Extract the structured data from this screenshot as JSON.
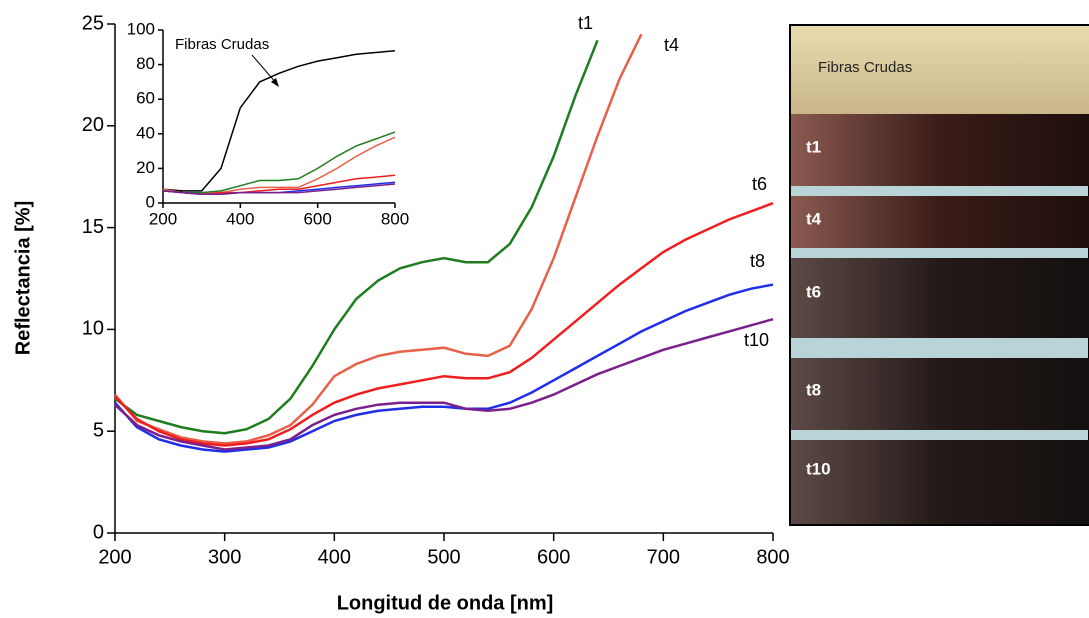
{
  "chart_data": [
    {
      "type": "line",
      "x_label": "Longitud de onda [nm]",
      "y_label": "Reflectancia [%]",
      "x": [
        200,
        220,
        240,
        260,
        280,
        300,
        320,
        340,
        360,
        380,
        400,
        420,
        440,
        460,
        480,
        500,
        520,
        540,
        560,
        580,
        600,
        620,
        640,
        660,
        680,
        700,
        720,
        740,
        760,
        780,
        800
      ],
      "xlim": [
        200,
        800
      ],
      "xticks": [
        200,
        300,
        400,
        500,
        600,
        700,
        800
      ],
      "ylim": [
        0,
        25
      ],
      "yticks": [
        0,
        5,
        10,
        15,
        20,
        25
      ],
      "series": [
        {
          "name": "t1",
          "color": "#1e7d1e",
          "values": [
            6.6,
            5.8,
            5.5,
            5.2,
            5.0,
            4.9,
            5.1,
            5.6,
            6.6,
            8.2,
            10.0,
            11.5,
            12.4,
            13.0,
            13.3,
            13.5,
            13.3,
            13.3,
            14.2,
            16.0,
            18.5,
            21.5,
            24.2,
            null,
            null,
            null,
            null,
            null,
            null,
            null,
            null
          ]
        },
        {
          "name": "t4",
          "color": "#e8604a",
          "values": [
            6.8,
            5.5,
            5.1,
            4.7,
            4.5,
            4.4,
            4.5,
            4.8,
            5.3,
            6.3,
            7.7,
            8.3,
            8.7,
            8.9,
            9.0,
            9.1,
            8.8,
            8.7,
            9.2,
            11.0,
            13.5,
            16.5,
            19.5,
            22.3,
            24.5,
            null,
            null,
            null,
            null,
            null,
            null
          ]
        },
        {
          "name": "t6",
          "color": "#f01e1e",
          "values": [
            6.7,
            5.6,
            5.0,
            4.6,
            4.4,
            4.3,
            4.4,
            4.6,
            5.1,
            5.8,
            6.4,
            6.8,
            7.1,
            7.3,
            7.5,
            7.7,
            7.6,
            7.6,
            7.9,
            8.6,
            9.5,
            10.4,
            11.3,
            12.2,
            13.0,
            13.8,
            14.4,
            14.9,
            15.4,
            15.8,
            16.2
          ]
        },
        {
          "name": "t8",
          "color": "#1f2fe8",
          "values": [
            6.4,
            5.2,
            4.6,
            4.3,
            4.1,
            4.0,
            4.1,
            4.2,
            4.5,
            5.0,
            5.5,
            5.8,
            6.0,
            6.1,
            6.2,
            6.2,
            6.1,
            6.1,
            6.4,
            6.9,
            7.5,
            8.1,
            8.7,
            9.3,
            9.9,
            10.4,
            10.9,
            11.3,
            11.7,
            12.0,
            12.2
          ]
        },
        {
          "name": "t10",
          "color": "#7b1f8c",
          "values": [
            6.3,
            5.3,
            4.8,
            4.5,
            4.3,
            4.1,
            4.2,
            4.3,
            4.6,
            5.3,
            5.8,
            6.1,
            6.3,
            6.4,
            6.4,
            6.4,
            6.1,
            6.0,
            6.1,
            6.4,
            6.8,
            7.3,
            7.8,
            8.2,
            8.6,
            9.0,
            9.3,
            9.6,
            9.9,
            10.2,
            10.5
          ]
        }
      ]
    },
    {
      "type": "line",
      "annotation": "Fibras Crudas",
      "x": [
        200,
        250,
        300,
        350,
        400,
        450,
        500,
        550,
        600,
        650,
        700,
        750,
        800
      ],
      "xlim": [
        200,
        800
      ],
      "xticks": [
        200,
        400,
        600,
        800
      ],
      "ylim": [
        0,
        100
      ],
      "yticks": [
        0,
        20,
        40,
        60,
        80,
        100
      ],
      "series": [
        {
          "name": "Fibras Crudas",
          "color": "#000000",
          "values": [
            8,
            7,
            7,
            20,
            55,
            70,
            75,
            79,
            82,
            84,
            86,
            87,
            88
          ]
        },
        {
          "name": "t1",
          "color": "#1e7d1e",
          "values": [
            8,
            6,
            6,
            7,
            10,
            13,
            13,
            14,
            20,
            27,
            33,
            37,
            41
          ]
        },
        {
          "name": "t4",
          "color": "#e8604a",
          "values": [
            8,
            6,
            5,
            6,
            8,
            9,
            9,
            9,
            14,
            20,
            27,
            33,
            38
          ]
        },
        {
          "name": "t6",
          "color": "#f01e1e",
          "values": [
            7,
            6,
            5,
            6,
            6,
            7,
            8,
            8,
            10,
            12,
            14,
            15,
            16
          ]
        },
        {
          "name": "t8",
          "color": "#1f2fe8",
          "values": [
            7,
            6,
            5,
            5,
            6,
            6,
            6,
            7,
            8,
            9,
            10,
            11,
            12
          ]
        },
        {
          "name": "t10",
          "color": "#7b1f8c",
          "values": [
            7,
            6,
            5,
            5,
            6,
            6,
            6,
            6,
            7,
            8,
            9,
            10,
            11
          ]
        }
      ]
    }
  ],
  "photo": {
    "labels": [
      "Fibras Crudas",
      "t1",
      "t4",
      "t6",
      "t8",
      "t10"
    ]
  }
}
